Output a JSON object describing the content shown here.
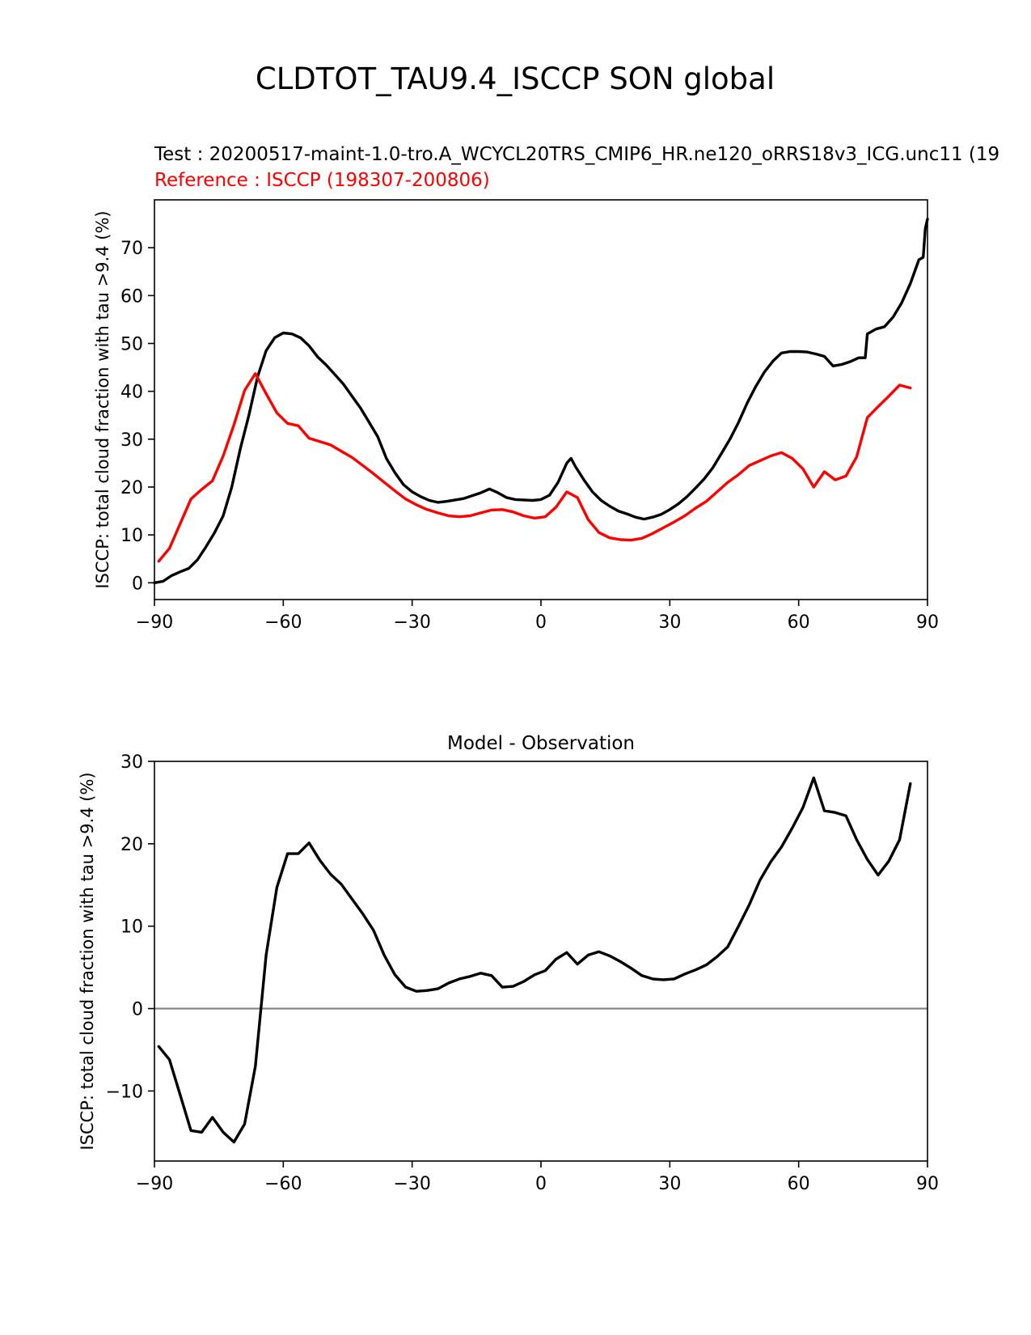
{
  "figure": {
    "title": "CLDTOT_TAU9.4_ISCCP SON global"
  },
  "chart_data": [
    {
      "type": "line",
      "test_label": "Test : 20200517-maint-1.0-tro.A_WCYCL20TRS_CMIP6_HR.ne120_oRRS18v3_ICG.unc11 (19",
      "reference_label": "Reference : ISCCP (198307-200806)",
      "ylabel": "ISCCP: total cloud fraction with tau >9.4 (%)",
      "xlim": [
        -90,
        90
      ],
      "ylim": [
        -3.5,
        80
      ],
      "xticks": [
        -90,
        -60,
        -30,
        0,
        30,
        60,
        90
      ],
      "yticks": [
        0,
        10,
        20,
        30,
        40,
        50,
        60,
        70
      ],
      "colors": {
        "test": "#000000",
        "reference": "#ff0000"
      },
      "series": [
        {
          "key": "test",
          "points": [
            [
              -90,
              0
            ],
            [
              -88,
              0.3
            ],
            [
              -86,
              1.5
            ],
            [
              -84,
              2.3
            ],
            [
              -82,
              3
            ],
            [
              -80,
              4.8
            ],
            [
              -78,
              7.5
            ],
            [
              -76,
              10.5
            ],
            [
              -74,
              14
            ],
            [
              -72,
              20
            ],
            [
              -70,
              28
            ],
            [
              -68,
              35
            ],
            [
              -66,
              43
            ],
            [
              -64,
              48.5
            ],
            [
              -62,
              51.2
            ],
            [
              -60,
              52.2
            ],
            [
              -58,
              52
            ],
            [
              -56,
              51.2
            ],
            [
              -54,
              49.5
            ],
            [
              -52,
              47.2
            ],
            [
              -50,
              45.5
            ],
            [
              -48,
              43.5
            ],
            [
              -46,
              41.5
            ],
            [
              -44,
              39
            ],
            [
              -42,
              36.5
            ],
            [
              -40,
              33.5
            ],
            [
              -38,
              30.5
            ],
            [
              -36,
              26
            ],
            [
              -34,
              23
            ],
            [
              -32,
              20.5
            ],
            [
              -30,
              19
            ],
            [
              -28,
              18
            ],
            [
              -26,
              17.2
            ],
            [
              -24,
              16.8
            ],
            [
              -22,
              17
            ],
            [
              -20,
              17.3
            ],
            [
              -18,
              17.6
            ],
            [
              -16,
              18.2
            ],
            [
              -14,
              18.8
            ],
            [
              -12,
              19.6
            ],
            [
              -10,
              18.8
            ],
            [
              -8,
              17.8
            ],
            [
              -6,
              17.4
            ],
            [
              -4,
              17.3
            ],
            [
              -2,
              17.2
            ],
            [
              0,
              17.4
            ],
            [
              2,
              18.3
            ],
            [
              4,
              21
            ],
            [
              6,
              25
            ],
            [
              7,
              26
            ],
            [
              8,
              24.3
            ],
            [
              10,
              21.5
            ],
            [
              12,
              19
            ],
            [
              14,
              17.2
            ],
            [
              16,
              16
            ],
            [
              18,
              15
            ],
            [
              20,
              14.4
            ],
            [
              22,
              13.7
            ],
            [
              24,
              13.3
            ],
            [
              26,
              13.7
            ],
            [
              28,
              14.3
            ],
            [
              30,
              15.3
            ],
            [
              32,
              16.5
            ],
            [
              34,
              18
            ],
            [
              36,
              19.8
            ],
            [
              38,
              21.7
            ],
            [
              40,
              24
            ],
            [
              42,
              27
            ],
            [
              44,
              30
            ],
            [
              46,
              33.5
            ],
            [
              48,
              37.5
            ],
            [
              50,
              41
            ],
            [
              52,
              44
            ],
            [
              54,
              46.3
            ],
            [
              56,
              48
            ],
            [
              58,
              48.3
            ],
            [
              60,
              48.3
            ],
            [
              62,
              48.2
            ],
            [
              64,
              47.8
            ],
            [
              66,
              47.3
            ],
            [
              68,
              45.3
            ],
            [
              70,
              45.6
            ],
            [
              72,
              46.2
            ],
            [
              74,
              47
            ],
            [
              75.5,
              47
            ],
            [
              76,
              52
            ],
            [
              78,
              53
            ],
            [
              80,
              53.5
            ],
            [
              82,
              55.5
            ],
            [
              84,
              58.5
            ],
            [
              86,
              62.5
            ],
            [
              88,
              67.5
            ],
            [
              89,
              68
            ],
            [
              89.5,
              74
            ],
            [
              90,
              76
            ]
          ]
        },
        {
          "key": "reference",
          "points": [
            [
              -89,
              4.5
            ],
            [
              -86.5,
              7.2
            ],
            [
              -81.5,
              17.5
            ],
            [
              -79,
              19.5
            ],
            [
              -76.5,
              21.3
            ],
            [
              -74,
              26.5
            ],
            [
              -71.5,
              33
            ],
            [
              -69,
              40.2
            ],
            [
              -66.5,
              43.7
            ],
            [
              -64,
              39.5
            ],
            [
              -61.5,
              35.5
            ],
            [
              -59,
              33.3
            ],
            [
              -56.5,
              32.8
            ],
            [
              -54,
              30.2
            ],
            [
              -51.5,
              29.5
            ],
            [
              -49,
              28.8
            ],
            [
              -46.5,
              27.5
            ],
            [
              -44,
              26.2
            ],
            [
              -41.5,
              24.5
            ],
            [
              -39,
              22.8
            ],
            [
              -36.5,
              21
            ],
            [
              -34,
              19.2
            ],
            [
              -31.5,
              17.5
            ],
            [
              -29,
              16.3
            ],
            [
              -26.5,
              15.3
            ],
            [
              -24,
              14.6
            ],
            [
              -21.5,
              14
            ],
            [
              -19,
              13.8
            ],
            [
              -16.5,
              14
            ],
            [
              -14,
              14.6
            ],
            [
              -11.5,
              15.2
            ],
            [
              -9,
              15.3
            ],
            [
              -6.5,
              14.8
            ],
            [
              -4,
              14
            ],
            [
              -1.5,
              13.5
            ],
            [
              1,
              13.8
            ],
            [
              3.5,
              15.8
            ],
            [
              6,
              19
            ],
            [
              8.5,
              17.8
            ],
            [
              11,
              13.2
            ],
            [
              13.5,
              10.5
            ],
            [
              16,
              9.4
            ],
            [
              18.5,
              9
            ],
            [
              21,
              8.9
            ],
            [
              23.5,
              9.3
            ],
            [
              26,
              10.3
            ],
            [
              28.5,
              11.5
            ],
            [
              31,
              12.7
            ],
            [
              33.5,
              14
            ],
            [
              36,
              15.6
            ],
            [
              38.5,
              17
            ],
            [
              41,
              19
            ],
            [
              43.5,
              21
            ],
            [
              46,
              22.6
            ],
            [
              48.5,
              24.5
            ],
            [
              51,
              25.5
            ],
            [
              53.5,
              26.5
            ],
            [
              56,
              27.2
            ],
            [
              58.5,
              26
            ],
            [
              61,
              23.8
            ],
            [
              63.5,
              20
            ],
            [
              66,
              23.2
            ],
            [
              68.5,
              21.5
            ],
            [
              71,
              22.3
            ],
            [
              73.5,
              26.3
            ],
            [
              76,
              34.5
            ],
            [
              78.5,
              36.8
            ],
            [
              81,
              39
            ],
            [
              83.5,
              41.3
            ],
            [
              86,
              40.7
            ]
          ]
        }
      ]
    },
    {
      "type": "line",
      "title": "Model - Observation",
      "ylabel": "ISCCP: total cloud fraction with tau >9.4 (%)",
      "xlim": [
        -90,
        90
      ],
      "ylim": [
        -18.5,
        30
      ],
      "xticks": [
        -90,
        -60,
        -30,
        0,
        30,
        60,
        90
      ],
      "yticks": [
        -10,
        0,
        10,
        20,
        30
      ],
      "zero_line_color": "#808080",
      "colors": {
        "diff": "#000000"
      },
      "series": [
        {
          "key": "diff",
          "points": [
            [
              -89,
              -4.6
            ],
            [
              -86.5,
              -6.2
            ],
            [
              -84,
              -10.5
            ],
            [
              -81.5,
              -14.8
            ],
            [
              -79,
              -15
            ],
            [
              -76.5,
              -13.2
            ],
            [
              -74,
              -15
            ],
            [
              -71.5,
              -16.2
            ],
            [
              -69,
              -14
            ],
            [
              -66.5,
              -7
            ],
            [
              -64,
              6.5
            ],
            [
              -61.5,
              14.7
            ],
            [
              -59,
              18.8
            ],
            [
              -56.5,
              18.8
            ],
            [
              -54,
              20.1
            ],
            [
              -51.5,
              18
            ],
            [
              -49,
              16.3
            ],
            [
              -46.5,
              15.1
            ],
            [
              -44,
              13.3
            ],
            [
              -41.5,
              11.5
            ],
            [
              -39,
              9.5
            ],
            [
              -36.5,
              6.5
            ],
            [
              -34,
              4.1
            ],
            [
              -31.5,
              2.6
            ],
            [
              -29,
              2.1
            ],
            [
              -26.5,
              2.2
            ],
            [
              -24,
              2.4
            ],
            [
              -21.5,
              3.1
            ],
            [
              -19,
              3.6
            ],
            [
              -16.5,
              3.9
            ],
            [
              -14,
              4.3
            ],
            [
              -11.5,
              4
            ],
            [
              -9,
              2.6
            ],
            [
              -6.5,
              2.7
            ],
            [
              -4,
              3.3
            ],
            [
              -1.5,
              4.1
            ],
            [
              1,
              4.6
            ],
            [
              3.5,
              6
            ],
            [
              6,
              6.8
            ],
            [
              8.5,
              5.4
            ],
            [
              11,
              6.5
            ],
            [
              13.5,
              6.9
            ],
            [
              16,
              6.4
            ],
            [
              18.5,
              5.7
            ],
            [
              21,
              4.9
            ],
            [
              23.5,
              4
            ],
            [
              26,
              3.6
            ],
            [
              28.5,
              3.5
            ],
            [
              31,
              3.6
            ],
            [
              33.5,
              4.2
            ],
            [
              36,
              4.7
            ],
            [
              38.5,
              5.3
            ],
            [
              41,
              6.3
            ],
            [
              43.5,
              7.5
            ],
            [
              46,
              10
            ],
            [
              48.5,
              12.6
            ],
            [
              51,
              15.6
            ],
            [
              53.5,
              17.8
            ],
            [
              56,
              19.6
            ],
            [
              58.5,
              21.9
            ],
            [
              61,
              24.4
            ],
            [
              63.5,
              28
            ],
            [
              66,
              24
            ],
            [
              68.5,
              23.8
            ],
            [
              71,
              23.4
            ],
            [
              73.5,
              20.5
            ],
            [
              76,
              18.1
            ],
            [
              78.5,
              16.2
            ],
            [
              81,
              17.9
            ],
            [
              83.5,
              20.5
            ],
            [
              86,
              27.3
            ]
          ]
        }
      ]
    }
  ]
}
